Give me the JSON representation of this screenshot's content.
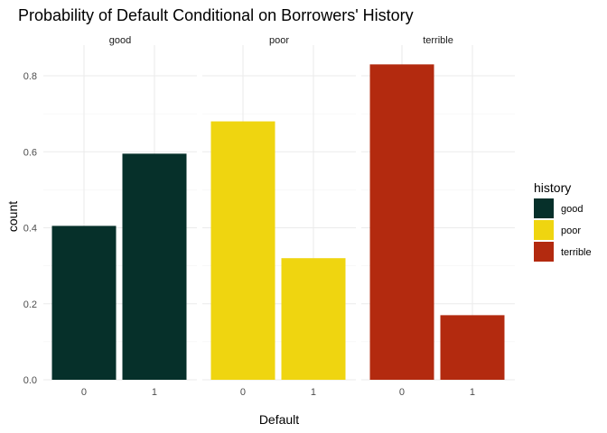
{
  "chart_data": {
    "type": "bar",
    "title": "Probability of Default Conditional on Borrowers' History",
    "xlabel": "Default",
    "ylabel": "count",
    "ylim": [
      0,
      0.87
    ],
    "yticks": [
      "0.0",
      "0.2",
      "0.4",
      "0.6",
      "0.8"
    ],
    "ytick_values": [
      0,
      0.2,
      0.4,
      0.6,
      0.8
    ],
    "categories": [
      "0",
      "1"
    ],
    "grid": true,
    "legend_position": "right",
    "legend": {
      "title": "history",
      "entries": [
        {
          "label": "good",
          "color": "#06302A"
        },
        {
          "label": "poor",
          "color": "#EFD510"
        },
        {
          "label": "terrible",
          "color": "#B32A0F"
        }
      ]
    },
    "facets": [
      {
        "label": "good",
        "color": "#06302A",
        "values": [
          0.405,
          0.595
        ]
      },
      {
        "label": "poor",
        "color": "#EFD510",
        "values": [
          0.68,
          0.32
        ]
      },
      {
        "label": "terrible",
        "color": "#B32A0F",
        "values": [
          0.83,
          0.17
        ]
      }
    ]
  }
}
